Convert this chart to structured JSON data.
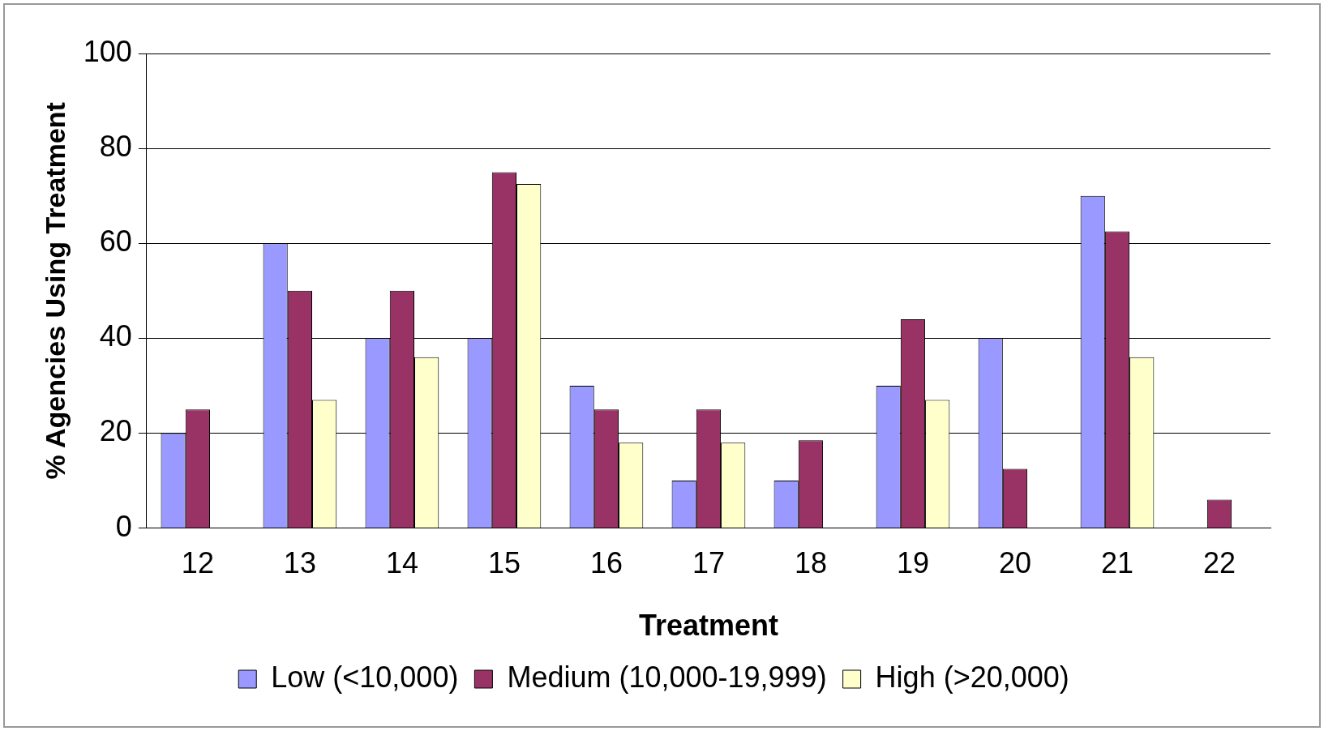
{
  "chart_data": {
    "type": "bar",
    "xlabel": "Treatment",
    "ylabel": "% Agencies Using Treatment",
    "categories": [
      "12",
      "13",
      "14",
      "15",
      "16",
      "17",
      "18",
      "19",
      "20",
      "21",
      "22"
    ],
    "series": [
      {
        "name": "Low (<10,000)",
        "color": "#9999ff",
        "values": [
          20,
          60,
          40,
          40,
          30,
          10,
          10,
          30,
          40,
          70,
          0
        ]
      },
      {
        "name": "Medium (10,000-19,999)",
        "color": "#993366",
        "values": [
          25,
          50,
          50,
          75,
          25,
          25,
          18.5,
          44,
          12.5,
          62.5,
          6
        ]
      },
      {
        "name": "High (>20,000)",
        "color": "#ffffcc",
        "values": [
          0,
          27,
          36,
          72.5,
          18,
          18,
          0,
          27,
          0,
          36,
          0
        ]
      }
    ],
    "ylim": [
      0,
      100
    ],
    "yticks": [
      0,
      20,
      40,
      60,
      80,
      100
    ],
    "grid": "y",
    "legend": "bottom"
  }
}
